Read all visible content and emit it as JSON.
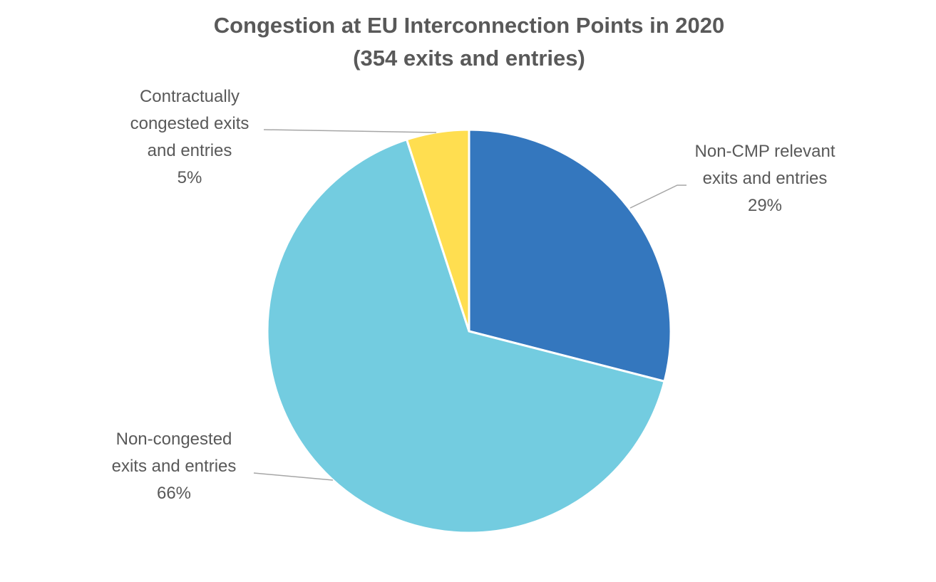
{
  "chart_data": {
    "type": "pie",
    "title": "Congestion at EU Interconnection Points in 2020",
    "subtitle": "(354 exits and entries)",
    "start_angle_deg": 0,
    "direction": "clockwise",
    "slices": [
      {
        "label_lines": [
          "Non-CMP relevant",
          "exits and entries"
        ],
        "percent_label": "29%",
        "value": 29,
        "color": "#3477be"
      },
      {
        "label_lines": [
          "Non-congested",
          "exits and entries"
        ],
        "percent_label": "66%",
        "value": 66,
        "color": "#73cce0"
      },
      {
        "label_lines": [
          "Contractually",
          "congested exits",
          "and entries"
        ],
        "percent_label": "5%",
        "value": 5,
        "color": "#ffde50"
      }
    ]
  }
}
